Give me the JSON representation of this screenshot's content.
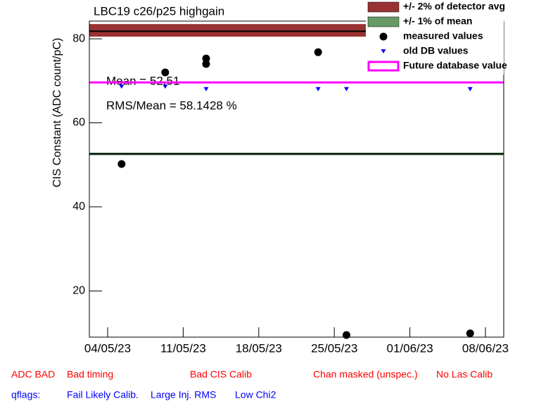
{
  "chart_data": {
    "type": "scatter",
    "title": "LBC19 c26/p25 highgain",
    "y_label": "CIS Constant (ADC count/pC)",
    "annotations": [
      "Mean = 52.51",
      "RMS/Mean = 58.1428 %"
    ],
    "xlim": [
      "2023-05-02T07:20",
      "2023-06-09T16:40"
    ],
    "xticks": [
      {
        "value": "2023-05-04",
        "label": "04/05/23"
      },
      {
        "value": "2023-05-11",
        "label": "11/05/23"
      },
      {
        "value": "2023-05-18",
        "label": "18/05/23"
      },
      {
        "value": "2023-05-25",
        "label": "25/05/23"
      },
      {
        "value": "2023-06-01",
        "label": "01/06/23"
      },
      {
        "value": "2023-06-08",
        "label": "08/06/23"
      }
    ],
    "ylim": [
      9,
      84.2
    ],
    "yticks": [
      20,
      40,
      60,
      80
    ],
    "series": [
      {
        "name": "+/- 2% of detector avg",
        "kind": "band",
        "color": "#993333",
        "center": 81.8,
        "band": [
          80.5,
          83.5
        ]
      },
      {
        "name": "+/- 1% of mean",
        "kind": "band",
        "color": "#669966",
        "center": 52.6,
        "band": [
          52.3,
          52.9
        ]
      },
      {
        "name": "measured values",
        "kind": "circle",
        "color": "#000000",
        "x": [
          "2023-05-05T07:00",
          "2023-05-09T08:00",
          "2023-05-13T03:00",
          "2023-05-13T03:00",
          "2023-05-23T12:00",
          "2023-05-26T03:00",
          "2023-06-06T14:00"
        ],
        "values": [
          50.2,
          72.0,
          75.3,
          74.0,
          76.8,
          9.5,
          9.9
        ]
      },
      {
        "name": "old DB values",
        "kind": "triangle",
        "color": "#0000ff",
        "x": [
          "2023-05-05T07:00",
          "2023-05-09T08:00",
          "2023-05-13T03:00",
          "2023-05-23T12:00",
          "2023-05-26T03:00",
          "2023-06-06T14:00"
        ],
        "values": [
          68.6,
          68.6,
          68.0,
          68.0,
          68.0,
          68.0
        ]
      },
      {
        "name": "Future database value",
        "kind": "hline",
        "color": "#ff00ff",
        "value": 69.6
      }
    ],
    "flags": [
      {
        "text": "ADC BAD",
        "color": "#ff0000"
      },
      {
        "text": "Bad timing",
        "color": "#ff0000"
      },
      {
        "text": "Bad CIS Calib",
        "color": "#ff0000"
      },
      {
        "text": "Chan masked (unspec.)",
        "color": "#ff0000"
      },
      {
        "text": "No Las Calib",
        "color": "#ff0000"
      },
      {
        "text": "qflags:",
        "color": "#0000ff"
      },
      {
        "text": "Fail Likely Calib.",
        "color": "#0000ff"
      },
      {
        "text": "Large Inj. RMS",
        "color": "#0000ff"
      },
      {
        "text": "Low Chi2",
        "color": "#0000ff"
      }
    ]
  }
}
